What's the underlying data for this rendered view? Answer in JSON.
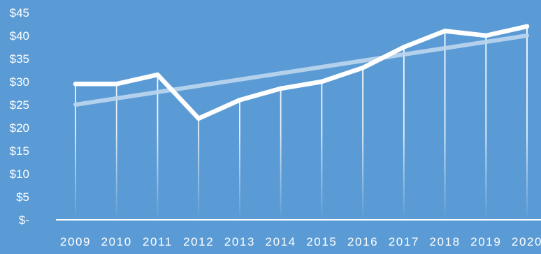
{
  "chart_data": {
    "type": "line",
    "title": "",
    "xlabel": "",
    "ylabel": "",
    "categories": [
      "2009",
      "2010",
      "2011",
      "2012",
      "2013",
      "2014",
      "2015",
      "2016",
      "2017",
      "2018",
      "2019",
      "2020"
    ],
    "y_tick_labels": [
      "$-",
      "$5",
      "$10",
      "$15",
      "$20",
      "$25",
      "$30",
      "$35",
      "$40",
      "$45"
    ],
    "y_ticks": [
      0,
      5,
      10,
      15,
      20,
      25,
      30,
      35,
      40,
      45
    ],
    "ylim": [
      0,
      45
    ],
    "grid": false,
    "drop_lines": true,
    "legend": "none",
    "series": [
      {
        "values": [
          29.5,
          29.5,
          31.5,
          22,
          26,
          28.5,
          30,
          33,
          37.5,
          41,
          40,
          42
        ],
        "color": "#ffffff"
      }
    ],
    "trendline": {
      "type": "linear",
      "start": 25,
      "end": 40,
      "color": "#bdd7ee"
    }
  }
}
